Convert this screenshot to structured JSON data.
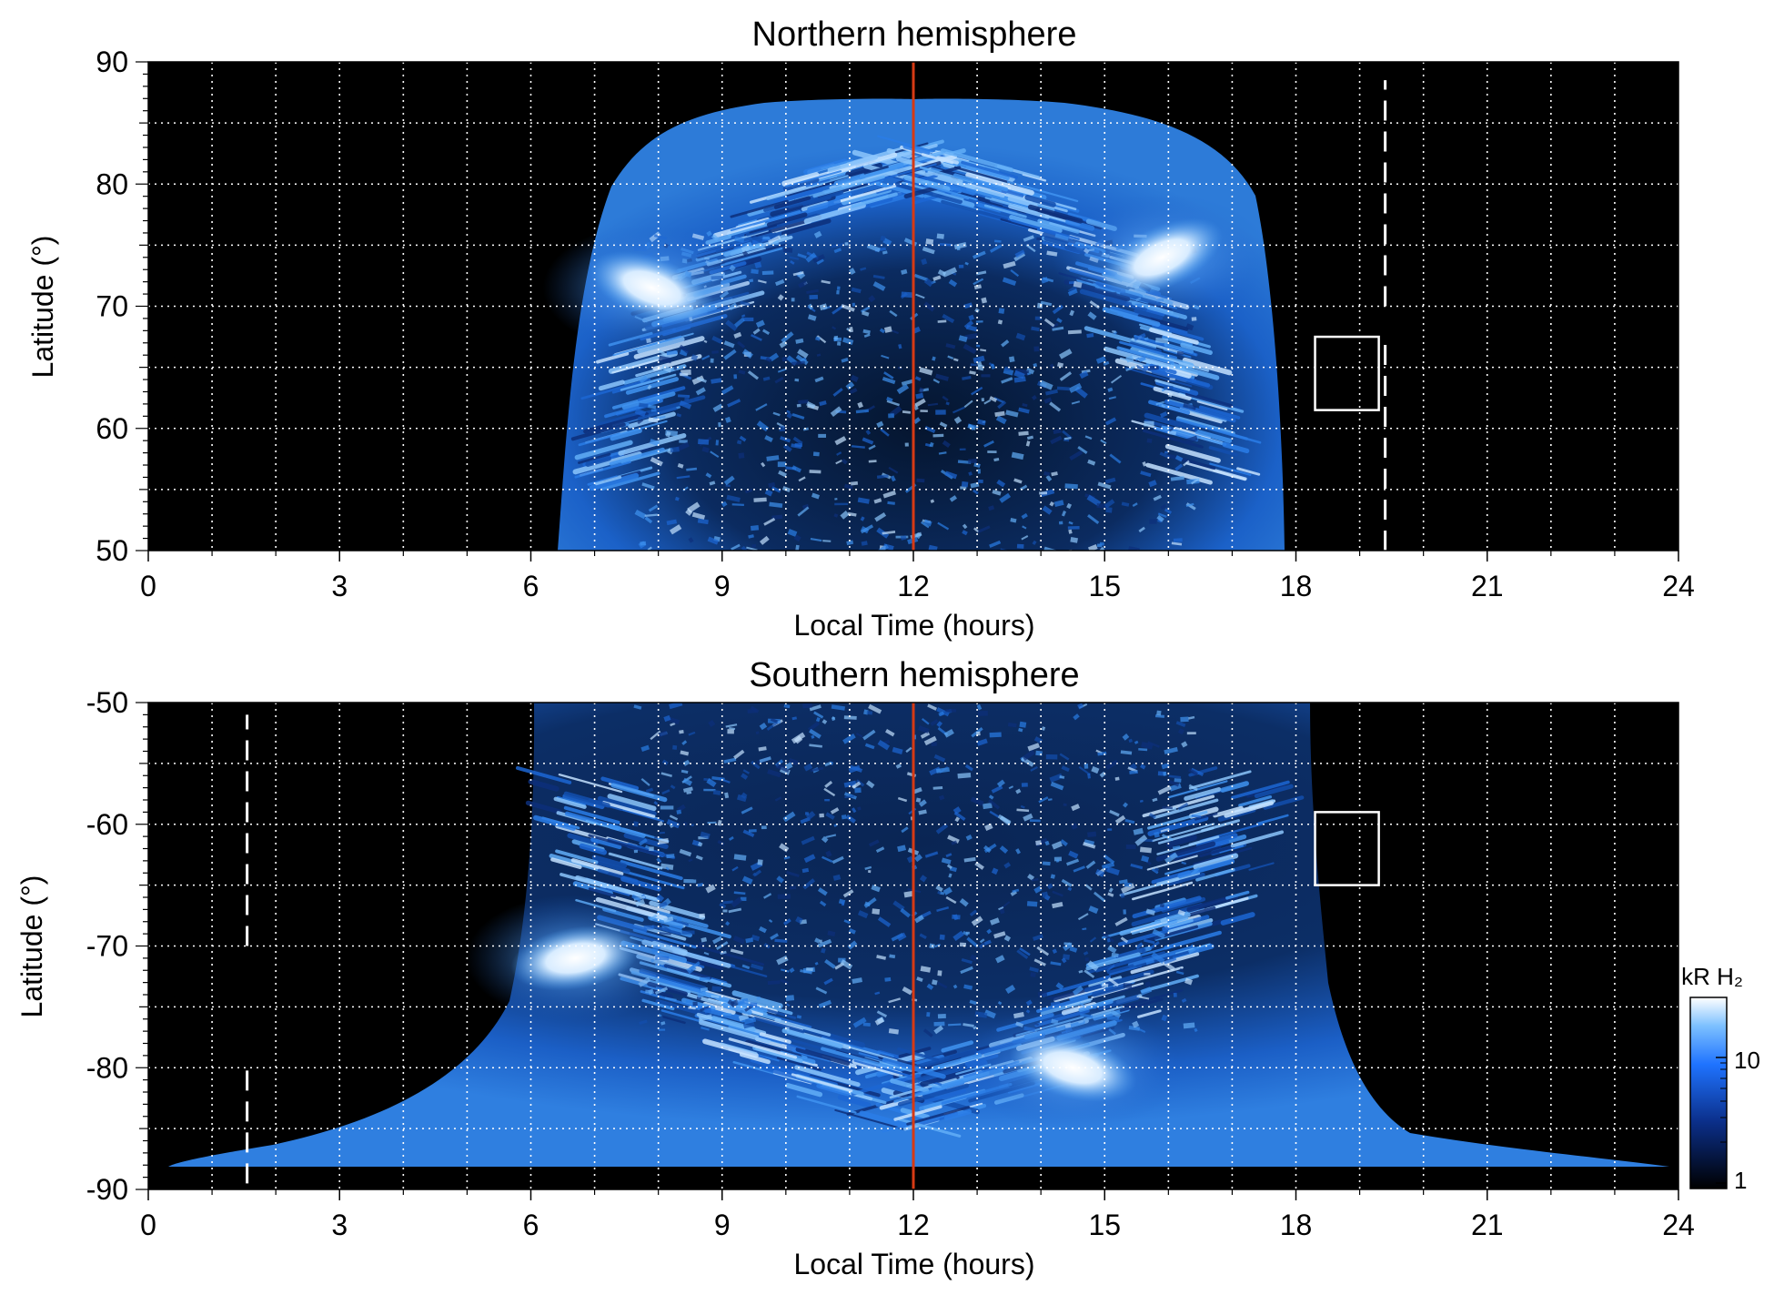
{
  "chart_data": [
    {
      "type": "heatmap",
      "title": "Northern hemisphere",
      "xlabel": "Local Time (hours)",
      "ylabel": "Latitude (°)",
      "xlim": [
        0,
        24
      ],
      "ylim": [
        50,
        90
      ],
      "xticks": [
        0,
        3,
        6,
        9,
        12,
        15,
        18,
        21,
        24
      ],
      "xtick_labels": [
        "0",
        "3",
        "6",
        "9",
        "12",
        "15",
        "18",
        "21",
        "24"
      ],
      "yticks": [
        50,
        60,
        70,
        80,
        90
      ],
      "ytick_labels": [
        "50",
        "60",
        "70",
        "80",
        "90"
      ],
      "grid": true,
      "colormap": "black-blue-white",
      "noon_line": {
        "x": 12,
        "color": "#d63a14"
      },
      "dashed_line": {
        "x": 19.4,
        "y_ranges": [
          [
            50,
            67.5
          ],
          [
            70,
            88.5
          ]
        ],
        "color": "#ffffff"
      },
      "box": {
        "x": [
          18.3,
          19.3
        ],
        "y": [
          61.5,
          67.5
        ],
        "color": "#ffffff"
      },
      "emission_region": {
        "x_range_at_base": [
          6.4,
          17.8
        ],
        "top_lat": 87.5
      },
      "bright_regions": [
        {
          "x": 7.9,
          "y": 71.5,
          "label": ""
        },
        {
          "x": 15.9,
          "y": 74.0,
          "label": ""
        }
      ]
    },
    {
      "type": "heatmap",
      "title": "Southern hemisphere",
      "xlabel": "Local Time (hours)",
      "ylabel": "Latitude (°)",
      "xlim": [
        0,
        24
      ],
      "ylim": [
        -90,
        -50
      ],
      "xticks": [
        0,
        3,
        6,
        9,
        12,
        15,
        18,
        21,
        24
      ],
      "xtick_labels": [
        "0",
        "3",
        "6",
        "9",
        "12",
        "15",
        "18",
        "21",
        "24"
      ],
      "yticks": [
        -90,
        -80,
        -70,
        -60,
        -50
      ],
      "ytick_labels": [
        "-90",
        "-80",
        "-70",
        "-60",
        "-50"
      ],
      "grid": true,
      "colormap": "black-blue-white",
      "noon_line": {
        "x": 12,
        "color": "#d63a14"
      },
      "dashed_line": {
        "x": 1.55,
        "y_ranges": [
          [
            -70,
            -51
          ],
          [
            -89.5,
            -80
          ]
        ],
        "color": "#ffffff"
      },
      "box": {
        "x": [
          18.3,
          19.3
        ],
        "y": [
          -65,
          -59
        ],
        "color": "#ffffff"
      },
      "emission_region": {
        "x_range_at_top": [
          6.0,
          18.2
        ],
        "bottom_lat": -89
      },
      "bright_regions": [
        {
          "x": 6.7,
          "y": -71.0,
          "label": ""
        },
        {
          "x": 14.5,
          "y": -80.0,
          "label": ""
        }
      ]
    }
  ],
  "colorbar": {
    "label": "kR H₂",
    "ticks": [
      "10",
      "1"
    ],
    "scale": "log",
    "range": [
      1,
      30
    ]
  }
}
